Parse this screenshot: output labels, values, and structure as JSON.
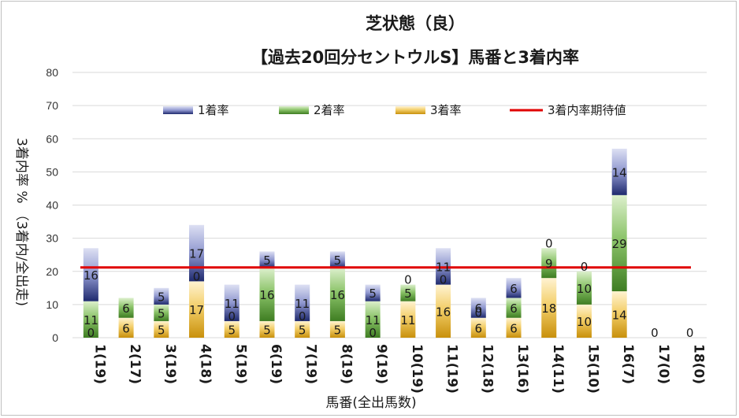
{
  "chart_data": {
    "type": "bar",
    "stacked": true,
    "title": "芝状態（良）",
    "subtitle": "【過去20回分セントウルS】馬番と3着内率",
    "xlabel": "馬番(全出馬数)",
    "ylabel": "3着内率 %  （3着内/全出走)",
    "ylim": [
      0,
      80
    ],
    "yticks": [
      0,
      10,
      20,
      30,
      40,
      50,
      60,
      70,
      80
    ],
    "grid": true,
    "legend_position": "top",
    "categories": [
      "1(19)",
      "2(17)",
      "3(19)",
      "4(18)",
      "5(19)",
      "6(19)",
      "7(19)",
      "8(19)",
      "9(19)",
      "10(19)",
      "11(19)",
      "12(18)",
      "13(16)",
      "14(11)",
      "15(10)",
      "16(7)",
      "17(0)",
      "18(0)"
    ],
    "series": [
      {
        "name": "3着率",
        "color": "#d4a017",
        "values": [
          0,
          6,
          5,
          17,
          5,
          5,
          5,
          5,
          0,
          11,
          16,
          6,
          6,
          18,
          10,
          14,
          0,
          0
        ]
      },
      {
        "name": "2着率",
        "color": "#5a9a3a",
        "values": [
          11,
          6,
          5,
          0,
          0,
          16,
          0,
          16,
          11,
          5,
          0,
          0,
          6,
          9,
          10,
          29,
          0,
          0
        ]
      },
      {
        "name": "1着率",
        "color": "#3a4590",
        "values": [
          16,
          0,
          5,
          17,
          11,
          5,
          11,
          5,
          5,
          0,
          11,
          6,
          6,
          0,
          0,
          14,
          0,
          0
        ]
      }
    ],
    "reference_line": {
      "name": "3着内率期待値",
      "value": 21.2,
      "color": "#e00000"
    },
    "label_overrides": {
      "2(17)": {
        "1着率": ""
      }
    }
  }
}
